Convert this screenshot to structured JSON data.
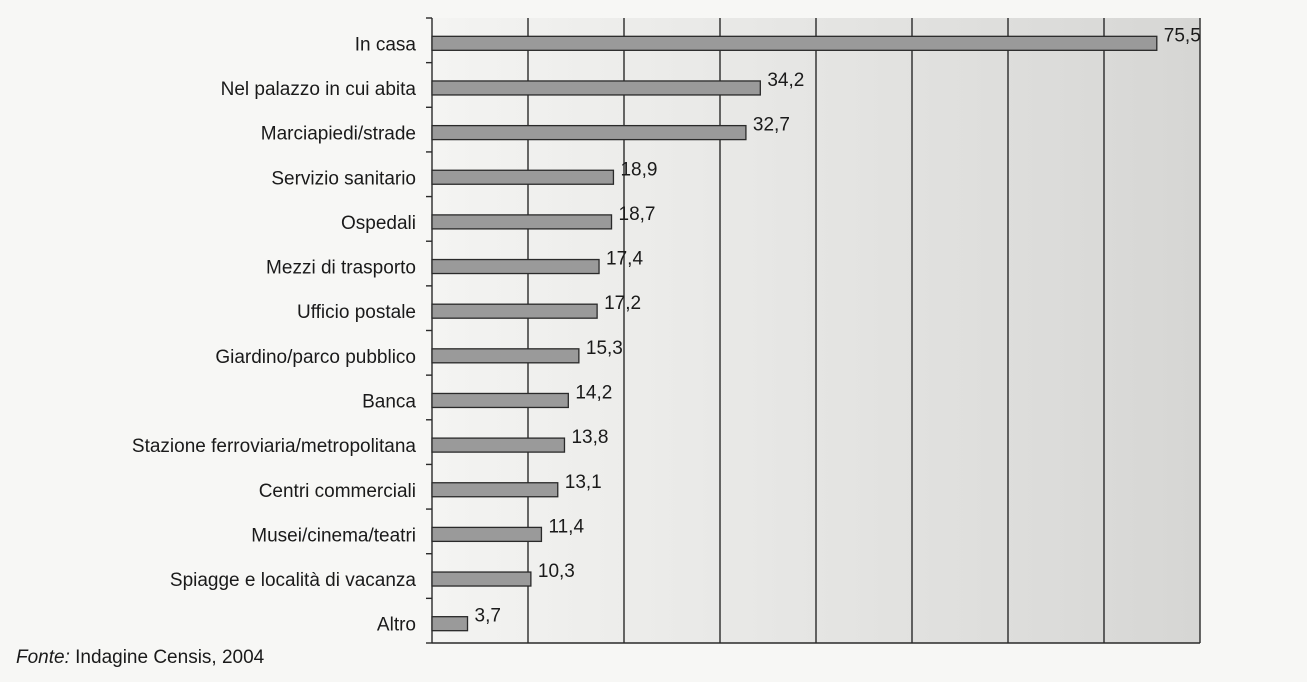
{
  "chart_data": {
    "type": "bar",
    "orientation": "horizontal",
    "categories": [
      "In casa",
      "Nel palazzo in cui abita",
      "Marciapiedi/strade",
      "Servizio sanitario",
      "Ospedali",
      "Mezzi di trasporto",
      "Ufficio postale",
      "Giardino/parco pubblico",
      "Banca",
      "Stazione ferroviaria/metropolitana",
      "Centri commerciali",
      "Musei/cinema/teatri",
      "Spiagge e località di vacanza",
      "Altro"
    ],
    "values": [
      75.5,
      34.2,
      32.7,
      18.9,
      18.7,
      17.4,
      17.2,
      15.3,
      14.2,
      13.8,
      13.1,
      11.4,
      10.3,
      3.7
    ],
    "value_labels": [
      "75,5",
      "34,2",
      "32,7",
      "18,9",
      "18,7",
      "17,4",
      "17,2",
      "15,3",
      "14,2",
      "13,8",
      "13,1",
      "11,4",
      "10,3",
      "3,7"
    ],
    "title": "",
    "xlabel": "",
    "ylabel": "",
    "xlim": [
      0,
      80
    ],
    "grid_step": 10,
    "grid": true,
    "legend": "none",
    "colors": {
      "bar_fill": "#9a9a9a",
      "bar_stroke": "#2a2a2a",
      "plot_band_light": "#f4f4f2",
      "plot_band_dark": "#d6d6d4",
      "grid_line": "#2a2a2a"
    }
  },
  "source": {
    "label": "Fonte:",
    "text": " Indagine Censis, 2004"
  }
}
